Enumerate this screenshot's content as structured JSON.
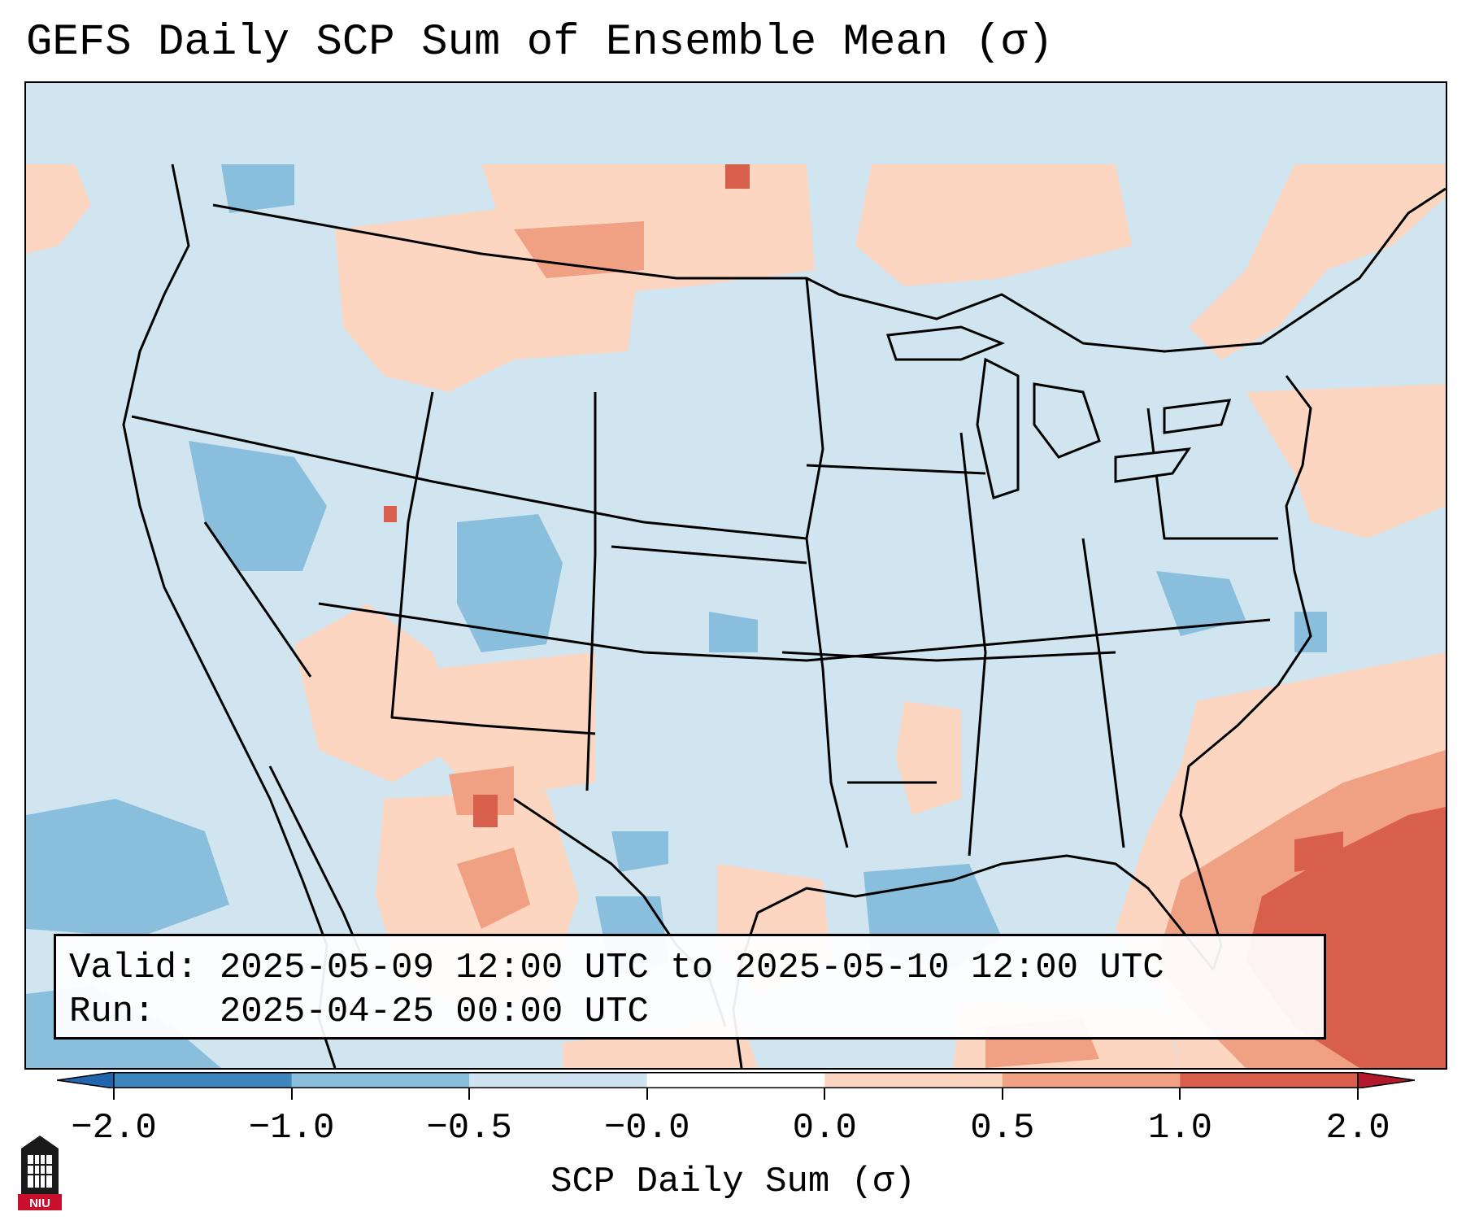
{
  "title": "GEFS Daily SCP Sum of Ensemble Mean (σ)",
  "info": {
    "valid_label": "Valid:",
    "valid_value": "2025-05-09 12:00 UTC to 2025-05-10 12:00 UTC",
    "run_label": "Run:",
    "run_value": "2025-04-25 00:00 UTC"
  },
  "colorbar": {
    "label": "SCP Daily Sum (σ)",
    "ticks": [
      "−2.0",
      "−1.0",
      "−0.5",
      "−0.0",
      "0.0",
      "0.5",
      "1.0",
      "2.0"
    ],
    "colors": [
      "#3f86bf",
      "#89bfdd",
      "#cfe4f0",
      "#ffffff",
      "#fcd6c1",
      "#f0a083",
      "#d75f4c"
    ],
    "under_color": "#2166ac",
    "over_color": "#b2182b"
  },
  "map": {
    "background_color": "#d1e5f0",
    "water_color": "#d1e5f0",
    "logo": "NIU"
  }
}
